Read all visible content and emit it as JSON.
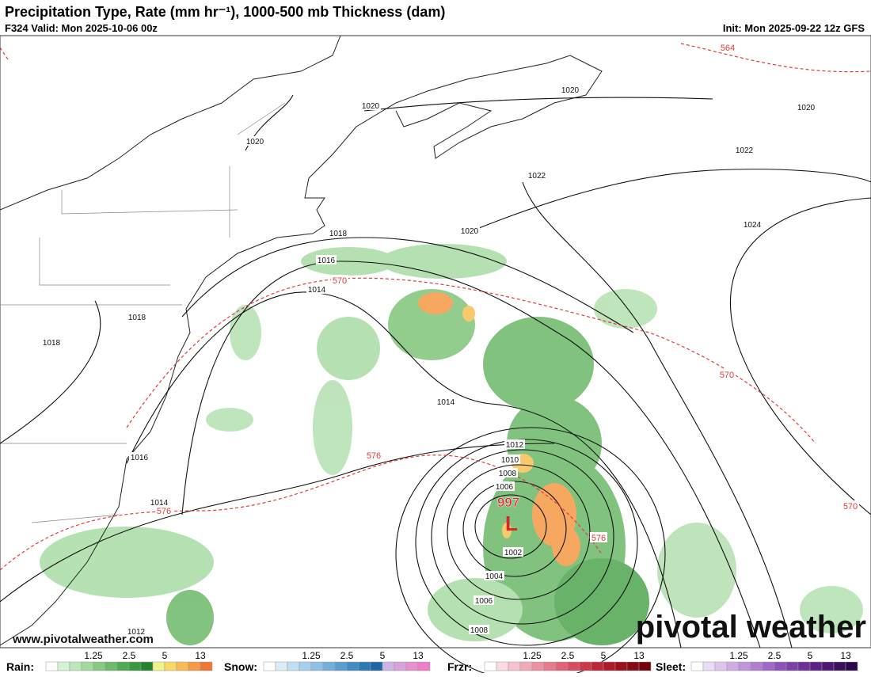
{
  "header": {
    "title": "Precipitation Type, Rate (mm hr⁻¹), 1000-500 mb Thickness (dam)",
    "valid": "F324 Valid: Mon 2025-10-06 00z",
    "init": "Init: Mon 2025-09-22 12z GFS"
  },
  "map": {
    "isobar_labels": [
      "1020",
      "1020",
      "1020",
      "1022",
      "1022",
      "1020",
      "1020",
      "1024",
      "1018",
      "1016",
      "1014",
      "1018",
      "1018",
      "1014",
      "1016",
      "1014",
      "1012",
      "1010",
      "1008",
      "1006",
      "1002",
      "1004",
      "1006",
      "1008",
      "1012"
    ],
    "thickness_labels": [
      "564",
      "570",
      "570",
      "570",
      "576",
      "576",
      "576"
    ],
    "low": {
      "pressure": "997",
      "symbol": "L"
    },
    "url": "www.pivotalweather.com",
    "brand": "pivotal weather"
  },
  "legend": [
    {
      "label": "Rain:",
      "colors": [
        "#ffffff",
        "#d6f1d3",
        "#bde6b9",
        "#a2d99e",
        "#86cb83",
        "#6bbb69",
        "#50aa52",
        "#3a9840",
        "#25832d",
        "#f2f28a",
        "#fbd764",
        "#f9b955",
        "#f69a45",
        "#f07835"
      ],
      "ticks": [
        "1.25",
        "2.5",
        "5",
        "13"
      ]
    },
    {
      "label": "Snow:",
      "colors": [
        "#ffffff",
        "#dcecf7",
        "#c2def2",
        "#a7cfec",
        "#8dc0e4",
        "#73afdb",
        "#5a9ed0",
        "#438cc3",
        "#2f7ab4",
        "#1f67a3",
        "#c9b6e3",
        "#d8a3db",
        "#e690d0",
        "#f07ec6"
      ],
      "ticks": [
        "1.25",
        "2.5",
        "5",
        "13"
      ]
    },
    {
      "label": "Frzr:",
      "colors": [
        "#ffffff",
        "#f9dbe1",
        "#f5c3cd",
        "#f1abb8",
        "#ec93a2",
        "#e67b8c",
        "#df6476",
        "#d64e60",
        "#cb394b",
        "#be2737",
        "#ae1a28",
        "#9b101d",
        "#870915",
        "#72040e"
      ],
      "ticks": [
        "1.25",
        "2.5",
        "5",
        "13"
      ]
    },
    {
      "label": "Sleet:",
      "colors": [
        "#ffffff",
        "#ecdcf3",
        "#dec5ec",
        "#cfade4",
        "#c096db",
        "#b07fd1",
        "#a068c5",
        "#8f53b7",
        "#7e40a8",
        "#6d3097",
        "#5c2385",
        "#4c1872",
        "#3c105f",
        "#2d094c"
      ],
      "ticks": [
        "1.25",
        "2.5",
        "5",
        "13"
      ]
    }
  ]
}
